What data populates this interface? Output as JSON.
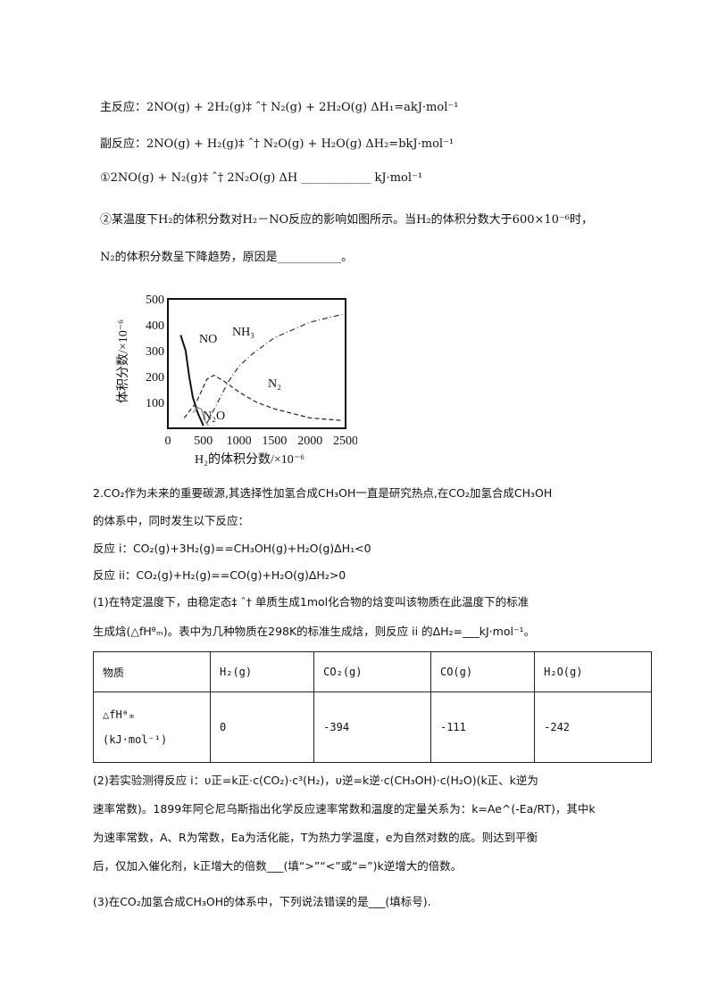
{
  "lines_top": [
    "主反应：2NO(g) + 2H₂(g)‡ ˆ† N₂(g) + 2H₂O(g)    ΔH₁=akJ·mol⁻¹",
    "副反应：2NO(g) + H₂(g)‡ ˆ† N₂O(g) + H₂O(g)    ΔH₂=bkJ·mol⁻¹",
    "①2NO(g) + N₂(g)‡ ˆ† 2N₂O(g)    ΔH ____________ kJ·mol⁻¹",
    "②某温度下H₂的体积分数对H₂－NO反应的影响如图所示。当H₂的体积分数大于600×10⁻⁶时，",
    "N₂的体积分数呈下降趋势，原因是___________。"
  ],
  "chart_data": {
    "type": "line",
    "xlabel": "H₂的体积分数/×10⁻⁶",
    "ylabel": "体积分数/×10⁻⁶",
    "xlim": [
      0,
      2500
    ],
    "ylim": [
      0,
      500
    ],
    "xticks": [
      "0",
      "500",
      "1000",
      "1500",
      "2000",
      "2500"
    ],
    "yticks": [
      "100",
      "200",
      "300",
      "400",
      "500"
    ],
    "grid": false,
    "series": [
      {
        "name": "NO",
        "style": "solid",
        "color": "#111111",
        "x": [
          180,
          250,
          300,
          350,
          420,
          500
        ],
        "y": [
          360,
          300,
          200,
          120,
          60,
          10
        ]
      },
      {
        "name": "N₂",
        "style": "dashed",
        "color": "#222222",
        "x": [
          230,
          400,
          550,
          650,
          800,
          1000,
          1250,
          1500,
          2000,
          2450
        ],
        "y": [
          40,
          100,
          190,
          205,
          180,
          140,
          100,
          75,
          40,
          30
        ]
      },
      {
        "name": "NH₃",
        "style": "dashdot",
        "color": "#333333",
        "x": [
          550,
          700,
          850,
          1000,
          1200,
          1500,
          2000,
          2450
        ],
        "y": [
          20,
          100,
          180,
          240,
          290,
          350,
          410,
          440
        ]
      },
      {
        "name": "N₂O",
        "style": "solid",
        "color": "#888888",
        "x": [
          350,
          420,
          470,
          520,
          570
        ],
        "y": [
          60,
          80,
          75,
          30,
          10
        ]
      }
    ]
  },
  "lines_mid": [
    "2.CO₂作为未来的重要碳源,其选择性加氢合成CH₃OH一直是研究热点,在CO₂加氢合成CH₃OH",
    "的体系中，同时发生以下反应：",
    "反应 i：CO₂(g)+3H₂(g)==CH₃OH(g)+H₂O(g)ΔH₁<0",
    "反应 ii：CO₂(g)+H₂(g)==CO(g)+H₂O(g)ΔH₂>0",
    "(1)在特定温度下，由稳定态‡ ˆ† 单质生成1mol化合物的焓变叫该物质在此温度下的标准",
    "生成焓(△fHᶿₘ)。表中为几种物质在298K的标准生成焓，则反应 ii 的ΔH₂=___kJ·mol⁻¹。"
  ],
  "table": {
    "header": [
      "物质",
      "H₂(g)",
      "CO₂(g)",
      "CO(g)",
      "H₂O(g)"
    ],
    "row_label_1": "△fHᶿₘ",
    "row_label_2": "(kJ·mol⁻¹)",
    "values": [
      "0",
      "-394",
      "-111",
      "-242"
    ]
  },
  "lines_bottom": [
    "(2)若实验测得反应 i：υ正=k正·c(CO₂)·c³(H₂)，υ逆=k逆·c(CH₃OH)·c(H₂O)(k正、k逆为",
    "速率常数)。1899年阿仑尼乌斯指出化学反应速率常数和温度的定量关系为：k=Ae^(-Ea/RT)，其中k",
    "为速率常数，A、R为常数，Ea为活化能，T为热力学温度，e为自然对数的底。则达到平衡",
    "后，仅加入催化剂，k正增大的倍数___(填“>”“<”或“=”)k逆增大的倍数。",
    "(3)在CO₂加氢合成CH₃OH的体系中，下列说法错误的是___(填标号)."
  ]
}
